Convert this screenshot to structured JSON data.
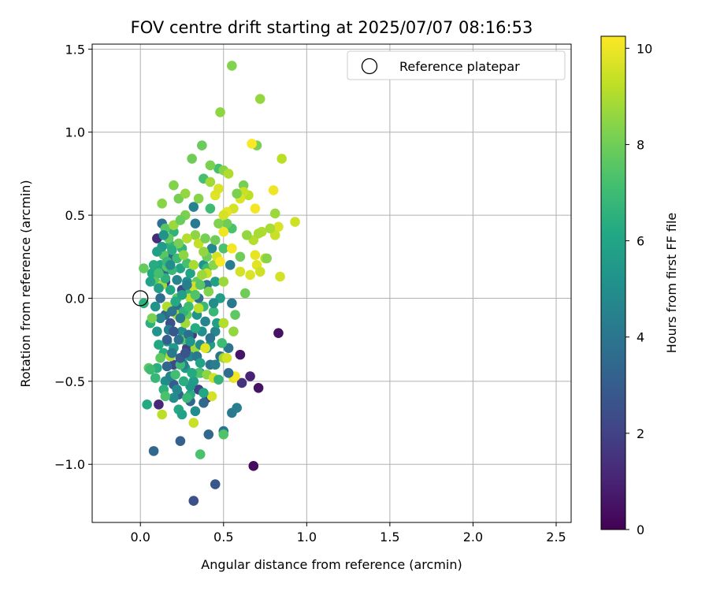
{
  "chart_data": {
    "type": "scatter",
    "title": "FOV centre drift starting at 2025/07/07 08:16:53",
    "xlabel": "Angular distance from reference (arcmin)",
    "ylabel": "Rotation from reference (arcmin)",
    "xlim": [
      -0.29,
      2.59
    ],
    "ylim": [
      -1.35,
      1.53
    ],
    "xticks": [
      0.0,
      0.5,
      1.0,
      1.5,
      2.0,
      2.5
    ],
    "xtick_labels": [
      "0.0",
      "0.5",
      "1.0",
      "1.5",
      "2.0",
      "2.5"
    ],
    "yticks": [
      -1.0,
      -0.5,
      0.0,
      0.5,
      1.0,
      1.5
    ],
    "ytick_labels": [
      "−1.0",
      "−0.5",
      "0.0",
      "0.5",
      "1.0",
      "1.5"
    ],
    "grid": true,
    "legend": {
      "position": "top-right",
      "entries": [
        "Reference platepar"
      ]
    },
    "reference_point": {
      "x": 0.0,
      "y": 0.0
    },
    "colorbar": {
      "label": "Hours from first FF file",
      "colormap": "viridis",
      "range": [
        0,
        10.25
      ],
      "ticks": [
        0,
        2,
        4,
        6,
        8,
        10
      ],
      "tick_labels": [
        "0",
        "2",
        "4",
        "6",
        "8",
        "10"
      ]
    },
    "points": [
      [
        0.83,
        -0.21,
        0.5
      ],
      [
        0.68,
        -1.01,
        0.3
      ],
      [
        0.71,
        -0.54,
        0.5
      ],
      [
        0.6,
        -0.34,
        0.6
      ],
      [
        0.66,
        -0.47,
        1.0
      ],
      [
        0.61,
        -0.51,
        1.5
      ],
      [
        0.1,
        0.36,
        1.3
      ],
      [
        0.11,
        -0.64,
        1.2
      ],
      [
        0.31,
        -0.22,
        1.8
      ],
      [
        0.2,
        -0.4,
        2.2
      ],
      [
        0.15,
        0.1,
        2.0
      ],
      [
        0.28,
        -0.3,
        1.9
      ],
      [
        0.35,
        -0.55,
        2.0
      ],
      [
        0.4,
        -0.6,
        1.7
      ],
      [
        0.25,
        0.05,
        2.3
      ],
      [
        0.18,
        -0.15,
        2.5
      ],
      [
        0.32,
        -1.22,
        2.5
      ],
      [
        0.45,
        -1.12,
        2.8
      ],
      [
        0.08,
        -0.92,
        3.5
      ],
      [
        0.24,
        -0.86,
        3.2
      ],
      [
        0.41,
        -0.82,
        3.5
      ],
      [
        0.5,
        -0.8,
        4.0
      ],
      [
        0.55,
        -0.69,
        4.2
      ],
      [
        0.58,
        -0.66,
        4.3
      ],
      [
        0.2,
        -0.52,
        3.0
      ],
      [
        0.23,
        -0.58,
        3.3
      ],
      [
        0.3,
        -0.62,
        3.4
      ],
      [
        0.38,
        -0.63,
        3.5
      ],
      [
        0.42,
        -0.4,
        3.8
      ],
      [
        0.48,
        -0.35,
        3.9
      ],
      [
        0.53,
        -0.3,
        4.0
      ],
      [
        0.55,
        -0.03,
        4.1
      ],
      [
        0.54,
        0.2,
        4.3
      ],
      [
        0.4,
        0.08,
        4.0
      ],
      [
        0.35,
        0.0,
        3.7
      ],
      [
        0.22,
        -0.05,
        3.6
      ],
      [
        0.15,
        -0.1,
        3.5
      ],
      [
        0.12,
        0.0,
        3.6
      ],
      [
        0.14,
        0.15,
        3.4
      ],
      [
        0.18,
        0.25,
        3.3
      ],
      [
        0.13,
        0.45,
        3.8
      ],
      [
        0.32,
        0.55,
        4.5
      ],
      [
        0.33,
        0.45,
        4.2
      ],
      [
        0.43,
        0.3,
        4.8
      ],
      [
        0.45,
        -0.2,
        4.6
      ],
      [
        0.3,
        -0.35,
        4.7
      ],
      [
        0.2,
        -0.6,
        4.9
      ],
      [
        0.15,
        -0.5,
        5.0
      ],
      [
        0.25,
        -0.2,
        5.0
      ],
      [
        0.28,
        0.1,
        5.1
      ],
      [
        0.34,
        -0.1,
        5.2
      ],
      [
        0.38,
        0.2,
        5.2
      ],
      [
        0.1,
        -0.2,
        5.3
      ],
      [
        0.16,
        -0.26,
        5.4
      ],
      [
        0.2,
        -0.3,
        5.5
      ],
      [
        0.27,
        -0.42,
        5.5
      ],
      [
        0.32,
        -0.5,
        5.6
      ],
      [
        0.36,
        -0.45,
        5.7
      ],
      [
        0.42,
        -0.28,
        5.6
      ],
      [
        0.46,
        -0.15,
        5.8
      ],
      [
        0.48,
        0.0,
        5.7
      ],
      [
        0.45,
        0.1,
        5.8
      ],
      [
        0.3,
        0.15,
        5.9
      ],
      [
        0.24,
        0.18,
        6.0
      ],
      [
        0.18,
        0.05,
        6.0
      ],
      [
        0.12,
        0.2,
        6.1
      ],
      [
        0.07,
        0.15,
        6.1
      ],
      [
        0.04,
        -0.64,
        6.2
      ],
      [
        0.23,
        -0.67,
        6.2
      ],
      [
        0.3,
        -0.58,
        6.3
      ],
      [
        0.25,
        -0.38,
        6.3
      ],
      [
        0.14,
        -0.33,
        6.4
      ],
      [
        0.1,
        -0.42,
        6.4
      ],
      [
        0.06,
        -0.15,
        6.5
      ],
      [
        0.02,
        -0.03,
        6.5
      ],
      [
        0.18,
        0.32,
        6.6
      ],
      [
        0.2,
        0.4,
        6.6
      ],
      [
        0.25,
        0.3,
        6.7
      ],
      [
        0.3,
        0.05,
        6.7
      ],
      [
        0.38,
        -0.05,
        6.8
      ],
      [
        0.44,
        -0.08,
        6.8
      ],
      [
        0.5,
        -0.15,
        6.9
      ],
      [
        0.4,
        0.18,
        6.9
      ],
      [
        0.42,
        0.54,
        7.0
      ],
      [
        0.45,
        0.62,
        7.1
      ],
      [
        0.38,
        0.72,
        7.2
      ],
      [
        0.47,
        0.78,
        7.2
      ],
      [
        0.55,
        0.42,
        7.3
      ],
      [
        0.5,
        0.3,
        7.3
      ],
      [
        0.36,
        -0.94,
        7.3
      ],
      [
        0.5,
        -0.82,
        7.4
      ],
      [
        0.35,
        -0.45,
        7.4
      ],
      [
        0.26,
        -0.25,
        7.5
      ],
      [
        0.22,
        0.0,
        7.5
      ],
      [
        0.16,
        0.19,
        7.5
      ],
      [
        0.14,
        0.26,
        7.6
      ],
      [
        0.09,
        0.1,
        7.6
      ],
      [
        0.05,
        -0.42,
        7.7
      ],
      [
        0.12,
        -0.36,
        7.7
      ],
      [
        0.28,
        -0.1,
        7.8
      ],
      [
        0.34,
        0.1,
        7.8
      ],
      [
        0.4,
        0.25,
        7.9
      ],
      [
        0.45,
        0.35,
        8.0
      ],
      [
        0.52,
        0.45,
        8.0
      ],
      [
        0.62,
        0.68,
        8.1
      ],
      [
        0.7,
        0.92,
        8.2
      ],
      [
        0.72,
        1.2,
        8.6
      ],
      [
        0.55,
        1.4,
        8.3
      ],
      [
        0.48,
        1.12,
        8.5
      ],
      [
        0.37,
        0.92,
        7.9
      ],
      [
        0.31,
        0.84,
        8.0
      ],
      [
        0.42,
        0.8,
        8.2
      ],
      [
        0.5,
        0.77,
        8.4
      ],
      [
        0.23,
        0.6,
        8.1
      ],
      [
        0.2,
        0.68,
        8.3
      ],
      [
        0.13,
        0.57,
        8.4
      ],
      [
        0.27,
        0.5,
        8.2
      ],
      [
        0.33,
        0.38,
        8.5
      ],
      [
        0.38,
        0.28,
        8.6
      ],
      [
        0.44,
        0.2,
        8.4
      ],
      [
        0.5,
        0.1,
        8.7
      ],
      [
        0.56,
        -0.2,
        8.6
      ],
      [
        0.5,
        -0.36,
        8.8
      ],
      [
        0.4,
        -0.46,
        8.5
      ],
      [
        0.33,
        -0.3,
        8.7
      ],
      [
        0.27,
        -0.15,
        8.8
      ],
      [
        0.22,
        -0.1,
        8.9
      ],
      [
        0.16,
        -0.05,
        9.0
      ],
      [
        0.13,
        0.08,
        8.8
      ],
      [
        0.18,
        -0.35,
        9.0
      ],
      [
        0.13,
        -0.7,
        9.2
      ],
      [
        0.32,
        -0.75,
        9.4
      ],
      [
        0.43,
        -0.59,
        9.6
      ],
      [
        0.44,
        -0.48,
        9.5
      ],
      [
        0.52,
        -0.36,
        9.6
      ],
      [
        0.56,
        -0.48,
        9.8
      ],
      [
        0.35,
        -0.06,
        9.2
      ],
      [
        0.3,
        0.0,
        9.3
      ],
      [
        0.32,
        0.07,
        9.5
      ],
      [
        0.4,
        0.15,
        9.4
      ],
      [
        0.46,
        0.25,
        9.6
      ],
      [
        0.55,
        0.3,
        9.7
      ],
      [
        0.6,
        0.16,
        9.6
      ],
      [
        0.66,
        0.14,
        9.7
      ],
      [
        0.7,
        0.2,
        9.8
      ],
      [
        0.72,
        0.16,
        9.5
      ],
      [
        0.69,
        0.26,
        9.9
      ],
      [
        0.75,
        0.24,
        9.3
      ],
      [
        0.73,
        0.4,
        9.0
      ],
      [
        0.68,
        0.35,
        9.1
      ],
      [
        0.65,
        0.62,
        9.2
      ],
      [
        0.62,
        0.64,
        9.4
      ],
      [
        0.6,
        0.6,
        9.7
      ],
      [
        0.56,
        0.54,
        9.6
      ],
      [
        0.52,
        0.52,
        9.9
      ],
      [
        0.5,
        0.4,
        10.0
      ],
      [
        0.55,
        0.3,
        10.1
      ],
      [
        0.48,
        0.22,
        10.2
      ],
      [
        0.45,
        0.62,
        9.8
      ],
      [
        0.47,
        0.66,
        9.7
      ],
      [
        0.5,
        0.5,
        9.6
      ],
      [
        0.85,
        0.84,
        9.2
      ],
      [
        0.93,
        0.46,
        9.5
      ],
      [
        0.83,
        0.43,
        9.7
      ],
      [
        0.8,
        0.65,
        10.0
      ],
      [
        0.69,
        0.54,
        10.1
      ],
      [
        0.67,
        0.93,
        10.2
      ],
      [
        0.81,
        0.38,
        9.4
      ],
      [
        0.78,
        0.42,
        8.9
      ],
      [
        0.81,
        0.51,
        8.7
      ],
      [
        0.76,
        0.24,
        8.4
      ],
      [
        0.84,
        0.13,
        9.6
      ],
      [
        0.71,
        0.39,
        8.9
      ],
      [
        0.63,
        0.03,
        8.0
      ],
      [
        0.57,
        -0.1,
        7.7
      ],
      [
        0.49,
        -0.27,
        7.0
      ],
      [
        0.47,
        -0.49,
        6.7
      ],
      [
        0.38,
        -0.57,
        6.1
      ],
      [
        0.3,
        -0.53,
        5.5
      ],
      [
        0.22,
        -0.55,
        4.8
      ],
      [
        0.18,
        -0.47,
        4.5
      ],
      [
        0.26,
        -0.4,
        4.3
      ],
      [
        0.34,
        -0.35,
        4.1
      ],
      [
        0.42,
        -0.24,
        3.9
      ],
      [
        0.29,
        -0.22,
        3.7
      ],
      [
        0.16,
        -0.25,
        3.1
      ],
      [
        0.06,
        -0.43,
        7.0
      ],
      [
        0.09,
        -0.48,
        6.8
      ],
      [
        0.14,
        -0.55,
        6.5
      ],
      [
        0.15,
        -0.59,
        7.3
      ],
      [
        0.21,
        -0.46,
        7.1
      ],
      [
        0.24,
        -0.4,
        6.9
      ],
      [
        0.26,
        -0.5,
        6.4
      ],
      [
        0.31,
        -0.45,
        6.2
      ],
      [
        0.36,
        -0.39,
        5.9
      ],
      [
        0.4,
        -0.3,
        5.3
      ],
      [
        0.37,
        -0.2,
        5.1
      ],
      [
        0.33,
        -0.18,
        6.3
      ],
      [
        0.26,
        -0.08,
        6.6
      ],
      [
        0.21,
        -0.02,
        6.2
      ],
      [
        0.25,
        0.02,
        5.8
      ],
      [
        0.29,
        -0.05,
        7.0
      ],
      [
        0.33,
        0.02,
        7.4
      ],
      [
        0.36,
        0.08,
        7.6
      ],
      [
        0.28,
        0.21,
        7.2
      ],
      [
        0.22,
        0.24,
        7.0
      ],
      [
        0.19,
        0.17,
        6.8
      ],
      [
        0.15,
        0.12,
        6.5
      ],
      [
        0.11,
        0.06,
        5.7
      ],
      [
        0.09,
        -0.05,
        5.2
      ],
      [
        0.12,
        -0.12,
        4.7
      ],
      [
        0.17,
        -0.19,
        4.4
      ],
      [
        0.24,
        -0.12,
        4.2
      ],
      [
        0.3,
        -0.26,
        5.3
      ],
      [
        0.36,
        -0.28,
        4.9
      ],
      [
        0.39,
        -0.14,
        4.6
      ],
      [
        0.44,
        -0.03,
        5.0
      ],
      [
        0.41,
        0.04,
        8.3
      ],
      [
        0.37,
        0.14,
        8.7
      ],
      [
        0.32,
        0.2,
        8.9
      ],
      [
        0.26,
        0.26,
        8.5
      ],
      [
        0.23,
        0.33,
        8.1
      ],
      [
        0.17,
        0.36,
        7.8
      ],
      [
        0.15,
        0.42,
        7.5
      ],
      [
        0.2,
        0.44,
        8.7
      ],
      [
        0.28,
        0.36,
        9.1
      ],
      [
        0.35,
        0.33,
        9.3
      ],
      [
        0.39,
        0.36,
        8.1
      ],
      [
        0.47,
        0.45,
        8.3
      ],
      [
        0.6,
        0.25,
        8.0
      ],
      [
        0.64,
        0.38,
        8.6
      ],
      [
        0.58,
        0.63,
        8.2
      ],
      [
        0.53,
        0.75,
        9.0
      ],
      [
        0.42,
        0.7,
        8.8
      ],
      [
        0.35,
        0.6,
        8.4
      ],
      [
        0.27,
        0.63,
        8.6
      ],
      [
        0.24,
        0.47,
        7.9
      ],
      [
        0.19,
        0.29,
        6.4
      ],
      [
        0.16,
        0.22,
        6.8
      ],
      [
        0.11,
        0.15,
        7.2
      ],
      [
        0.06,
        0.1,
        5.9
      ],
      [
        0.08,
        0.2,
        6.3
      ],
      [
        0.13,
        0.31,
        5.6
      ],
      [
        0.14,
        0.38,
        5.2
      ],
      [
        0.18,
        0.2,
        4.9
      ],
      [
        0.22,
        0.11,
        4.6
      ],
      [
        0.28,
        0.08,
        4.4
      ],
      [
        0.19,
        -0.08,
        4.0
      ],
      [
        0.23,
        -0.25,
        3.8
      ],
      [
        0.19,
        -0.33,
        4.1
      ],
      [
        0.16,
        -0.41,
        3.4
      ],
      [
        0.24,
        -0.36,
        3.0
      ],
      [
        0.27,
        -0.33,
        2.6
      ],
      [
        0.2,
        -0.2,
        2.8
      ],
      [
        0.02,
        0.18,
        7.8
      ],
      [
        0.07,
        -0.12,
        8.2
      ],
      [
        0.39,
        -0.3,
        9.8
      ],
      [
        0.5,
        -0.15,
        9.1
      ],
      [
        0.57,
        -0.47,
        10.1
      ],
      [
        0.28,
        -0.6,
        6.8
      ],
      [
        0.25,
        -0.7,
        5.9
      ],
      [
        0.33,
        -0.68,
        5.0
      ],
      [
        0.45,
        -0.4,
        4.4
      ],
      [
        0.53,
        -0.45,
        3.6
      ],
      [
        0.11,
        -0.28,
        6.1
      ],
      [
        0.1,
        0.28,
        5.8
      ]
    ]
  }
}
